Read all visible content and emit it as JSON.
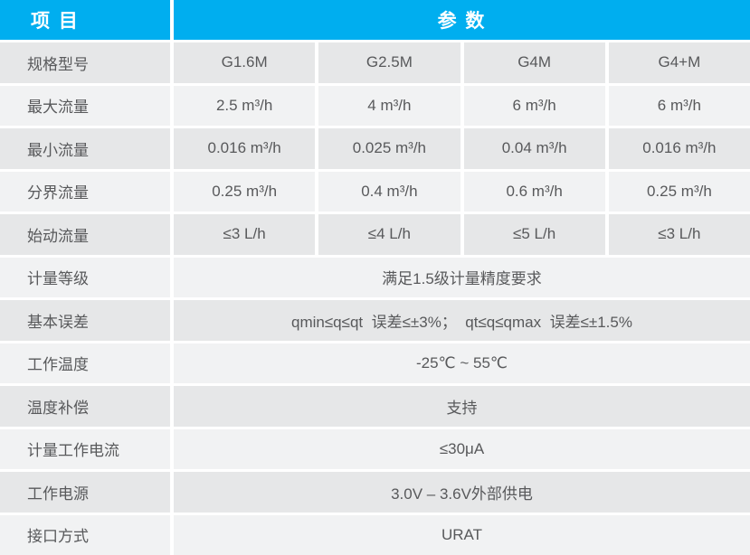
{
  "colors": {
    "accent": "#00aeef",
    "row_dark": "#e6e7e8",
    "row_light": "#f1f2f3",
    "text": "#58595b",
    "header_text": "#ffffff"
  },
  "header": {
    "item_label": "项 目",
    "param_label": "参 数"
  },
  "table": {
    "spec_rows": [
      {
        "label": "规格型号",
        "values": [
          "G1.6M",
          "G2.5M",
          "G4M",
          "G4+M"
        ]
      },
      {
        "label": "最大流量",
        "values": [
          "2.5 m³/h",
          "4 m³/h",
          "6 m³/h",
          "6 m³/h"
        ]
      },
      {
        "label": "最小流量",
        "values": [
          "0.016 m³/h",
          "0.025 m³/h",
          "0.04 m³/h",
          "0.016 m³/h"
        ]
      },
      {
        "label": "分界流量",
        "values": [
          "0.25 m³/h",
          "0.4 m³/h",
          "0.6 m³/h",
          "0.25 m³/h"
        ]
      },
      {
        "label": "始动流量",
        "values": [
          "≤3 L/h",
          "≤4 L/h",
          "≤5 L/h",
          "≤3 L/h"
        ]
      }
    ],
    "merged_rows": [
      {
        "label": "计量等级",
        "value": "满足1.5级计量精度要求"
      },
      {
        "label": "基本误差",
        "value": "qmin≤q≤qt  误差≤±3%；  qt≤q≤qmax  误差≤±1.5%"
      },
      {
        "label": "工作温度",
        "value": "-25℃ ~ 55℃"
      },
      {
        "label": "温度补偿",
        "value": "支持"
      },
      {
        "label": "计量工作电流",
        "value": "≤30μA"
      },
      {
        "label": "工作电源",
        "value": "3.0V – 3.6V外部供电"
      },
      {
        "label": "接口方式",
        "value": "URAT"
      }
    ]
  }
}
